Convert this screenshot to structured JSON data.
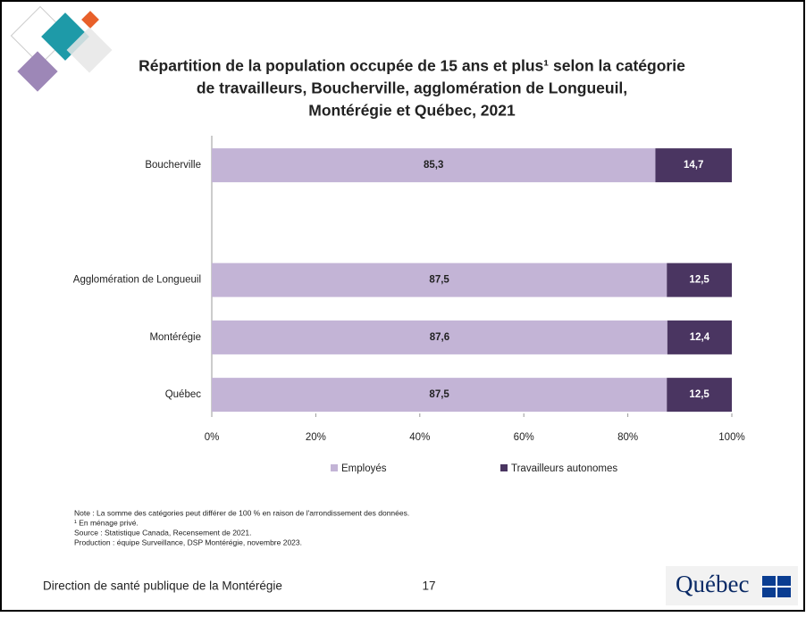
{
  "chart_data": {
    "type": "stacked-bar-horizontal",
    "title": [
      "Répartition de la population occupée de 15 ans et plus¹ selon la catégorie",
      "de travailleurs, Boucherville, agglomération de Longueuil,",
      "Montérégie et Québec, 2021"
    ],
    "categories": [
      "Boucherville",
      null,
      "Agglomération de Longueuil",
      "Montérégie",
      "Québec"
    ],
    "series": [
      {
        "name": "Employés",
        "color": "#c3b4d6",
        "values": [
          85.3,
          null,
          87.5,
          87.6,
          87.5
        ],
        "value_labels": [
          "85,3",
          null,
          "87,5",
          "87,6",
          "87,5"
        ]
      },
      {
        "name": "Travailleurs autonomes",
        "color": "#4a3561",
        "values": [
          14.7,
          null,
          12.5,
          12.4,
          12.5
        ],
        "value_labels": [
          "14,7",
          null,
          "12,5",
          "12,4",
          "12,5"
        ]
      }
    ],
    "xlim": [
      0,
      100
    ],
    "xticks": [
      {
        "value": 0,
        "label": "0%"
      },
      {
        "value": 20,
        "label": "20%"
      },
      {
        "value": 40,
        "label": "40%"
      },
      {
        "value": 60,
        "label": "60%"
      },
      {
        "value": 80,
        "label": "80%"
      },
      {
        "value": 100,
        "label": "100%"
      }
    ],
    "grid": false,
    "legend": "bottom"
  },
  "notes": [
    "Note : La somme des catégories peut différer de 100 % en raison de l'arrondissement des données.",
    "¹ En ménage privé.",
    "Source : Statistique Canada, Recensement de 2021.",
    "Production : équipe Surveillance, DSP Montérégie, novembre 2023."
  ],
  "footer": {
    "organization": "Direction de santé publique de la Montérégie",
    "page": "17",
    "logo": "Québec"
  }
}
